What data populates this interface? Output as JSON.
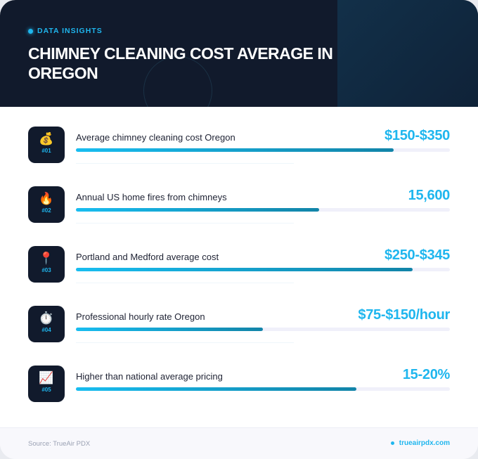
{
  "header": {
    "kicker": "DATA INSIGHTS",
    "title": "CHIMNEY CLEANING COST AVERAGE IN OREGON"
  },
  "stats": [
    {
      "icon": "money-bag-icon",
      "emoji": "💰",
      "num": "#01",
      "label": "Average chimney cleaning cost Oregon",
      "value": "$150-$350",
      "fill_percent": 85
    },
    {
      "icon": "fire-icon",
      "emoji": "🔥",
      "num": "#02",
      "label": "Annual US home fires from chimneys",
      "value": "15,600",
      "fill_percent": 65
    },
    {
      "icon": "pin-icon",
      "emoji": "📍",
      "num": "#03",
      "label": "Portland and Medford average cost",
      "value": "$250-$345",
      "fill_percent": 90
    },
    {
      "icon": "stopwatch-icon",
      "emoji": "⏱️",
      "num": "#04",
      "label": "Professional hourly rate Oregon",
      "value": "$75-$150/hour",
      "fill_percent": 50
    },
    {
      "icon": "chart-up-icon",
      "emoji": "📈",
      "num": "#05",
      "label": "Higher than national average pricing",
      "value": "15-20%",
      "fill_percent": 75
    }
  ],
  "footer": {
    "source": "Source: TrueAir PDX",
    "site": "trueairpdx.com"
  },
  "colors": {
    "accent": "#1fb6ee",
    "header_bg": "#111a2c"
  }
}
